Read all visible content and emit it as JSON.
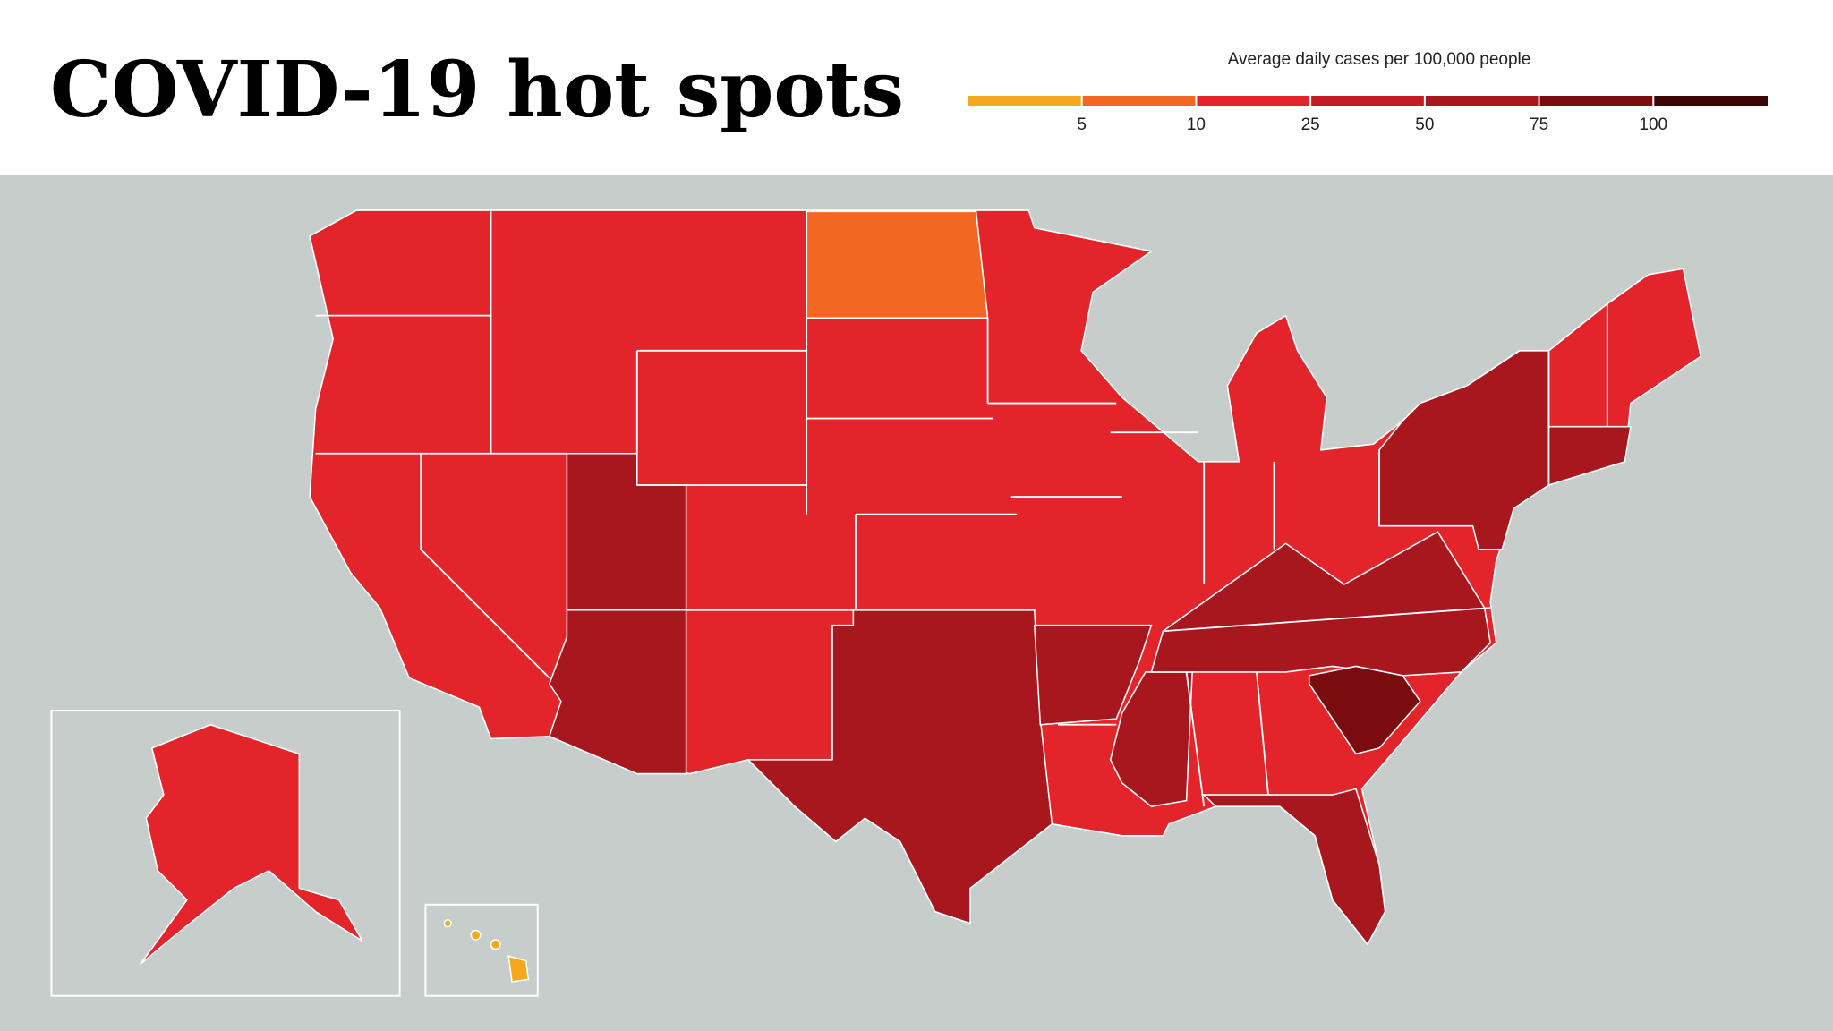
{
  "header": {
    "title": "COVID-19 hot spots"
  },
  "legend": {
    "title": "Average daily cases per 100,000 people",
    "colors": [
      "#f4a81d",
      "#f26722",
      "#e3242b",
      "#c41a24",
      "#a8161e",
      "#7a0c10",
      "#3e0507"
    ],
    "ticks": [
      5,
      10,
      25,
      50,
      75,
      100
    ]
  }
}
